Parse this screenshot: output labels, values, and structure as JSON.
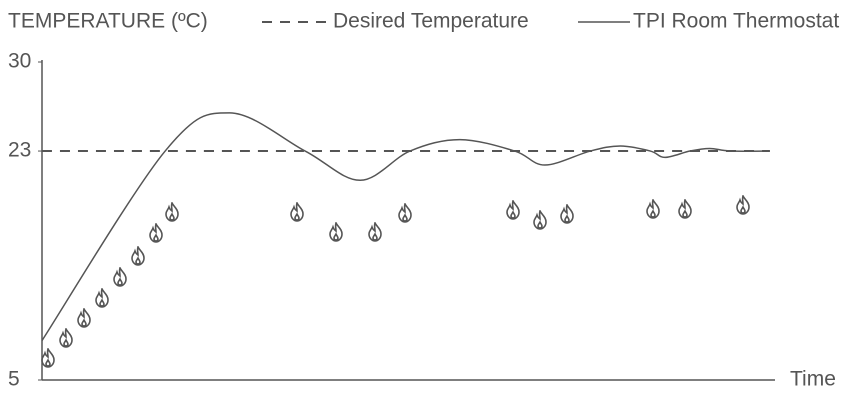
{
  "chart_data": {
    "type": "line",
    "y_label": "TEMPERATURE (ºC)",
    "x_label": "Time",
    "ylim": [
      5,
      30
    ],
    "yticks": [
      5,
      23,
      30
    ],
    "xlim": [
      0,
      100
    ],
    "series": [
      {
        "name": "Desired Temperature",
        "color": "#555555",
        "dash": true,
        "x": [
          0,
          99.3
        ],
        "values": [
          23,
          23
        ]
      },
      {
        "name": "TPI Room Thermostat",
        "color": "#555555",
        "dash": false,
        "x": [
          0,
          16.8,
          25.6,
          35.9,
          43.4,
          50.2,
          57.0,
          64.5,
          68.6,
          74.8,
          78.9,
          83.0,
          85.0,
          88.4,
          91.1,
          93.9,
          99.3
        ],
        "values": [
          8.1,
          23,
          26.0,
          23,
          20.7,
          23,
          23.9,
          23,
          21.9,
          23,
          23.4,
          23,
          22.5,
          23,
          23.2,
          23,
          23
        ]
      }
    ]
  }
}
